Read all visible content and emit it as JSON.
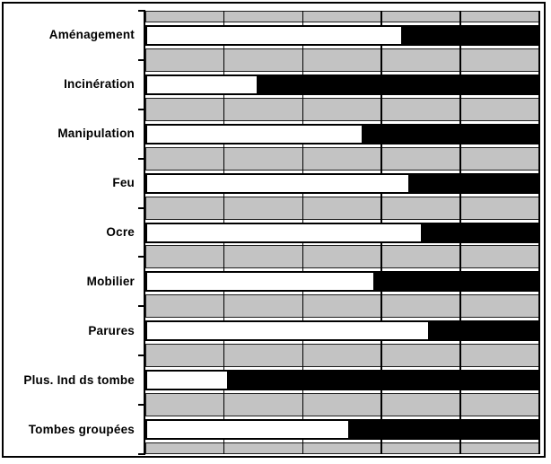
{
  "figure": {
    "background_color": "#ffffff",
    "frame_border_color": "#000000",
    "plot_band_color": "#c3c3c3",
    "axis_color": "#000000"
  },
  "chart_data": {
    "type": "bar",
    "orientation": "horizontal",
    "stacked": true,
    "unit": "percent",
    "title": "",
    "xlabel": "",
    "ylabel": "",
    "xlim": [
      0,
      100
    ],
    "gridlines": {
      "axis": "x",
      "interval_percent": 20,
      "color": "#000000",
      "visible": true
    },
    "legend": "none",
    "value_axis_labels_visible": false,
    "categories": [
      "Aménagement",
      "Incinération",
      "Manipulation",
      "Feu",
      "Ocre",
      "Mobilier",
      "Parures",
      "Plus. Ind ds tombe",
      "Tombes groupées"
    ],
    "series": [
      {
        "name": "white",
        "color": "#ffffff",
        "values": [
          65,
          28,
          55,
          67,
          70,
          58,
          72,
          20.5,
          51.5
        ]
      },
      {
        "name": "black",
        "color": "#000000",
        "values": [
          35,
          72,
          45,
          33,
          30,
          42,
          28,
          79.5,
          48.5
        ]
      }
    ]
  }
}
